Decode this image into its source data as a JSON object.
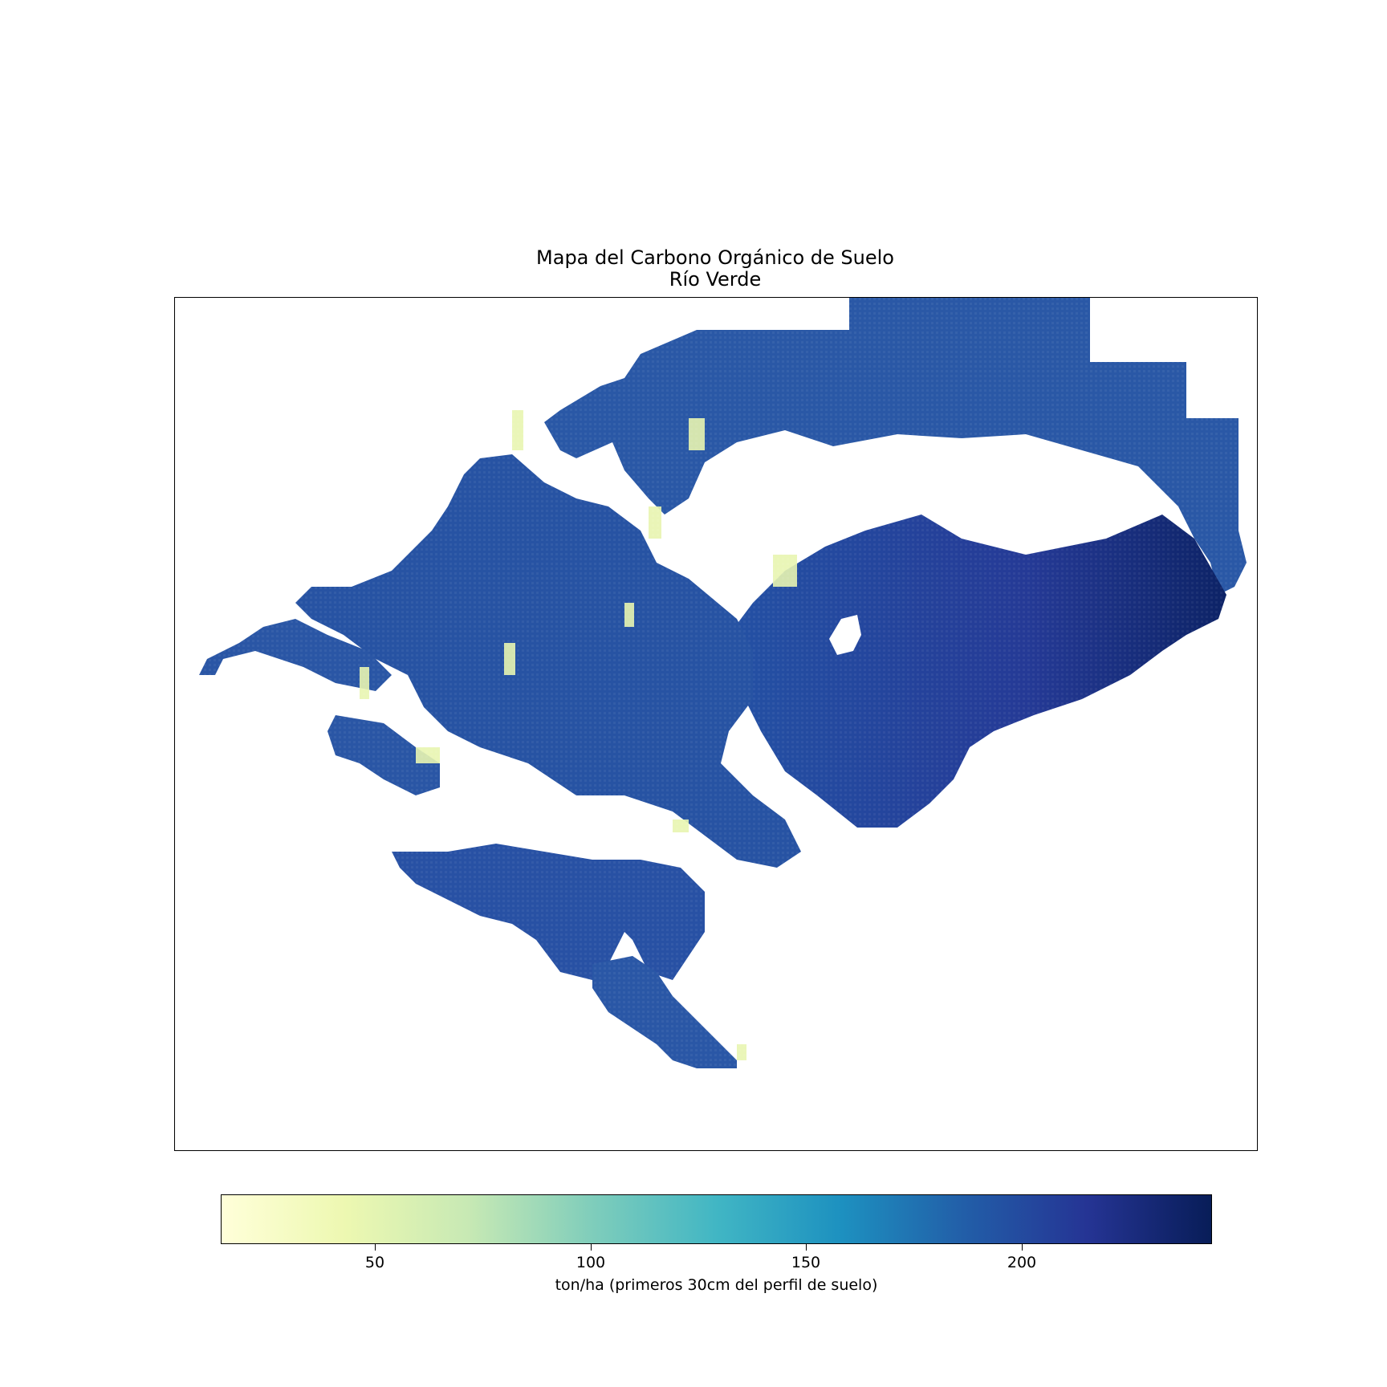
{
  "chart_data": {
    "type": "heatmap",
    "title": "Mapa del Carbono Orgánico de Suelo",
    "subtitle": "Río Verde",
    "colormap": "YlGnBu",
    "colorbar": {
      "range": [
        15,
        245
      ],
      "ticks": [
        50,
        100,
        150,
        200
      ],
      "tick_labels": [
        "50",
        "100",
        "150",
        "200"
      ],
      "label": "ton/ha (primeros 30cm del perfil de suelo)",
      "orientation": "horizontal"
    },
    "axes_visible": false,
    "grid": false,
    "dominant_value_range": [
      180,
      230
    ],
    "low_value_fringe_range": [
      30,
      80
    ],
    "max_value_region": "east",
    "no_data_color": "#ffffff"
  },
  "colors": {
    "ylgnbu_stops": [
      "#ffffd9",
      "#edf8b1",
      "#c7e9b4",
      "#7fcdbb",
      "#41b6c4",
      "#1d91c0",
      "#225ea8",
      "#253494",
      "#081d58"
    ]
  }
}
